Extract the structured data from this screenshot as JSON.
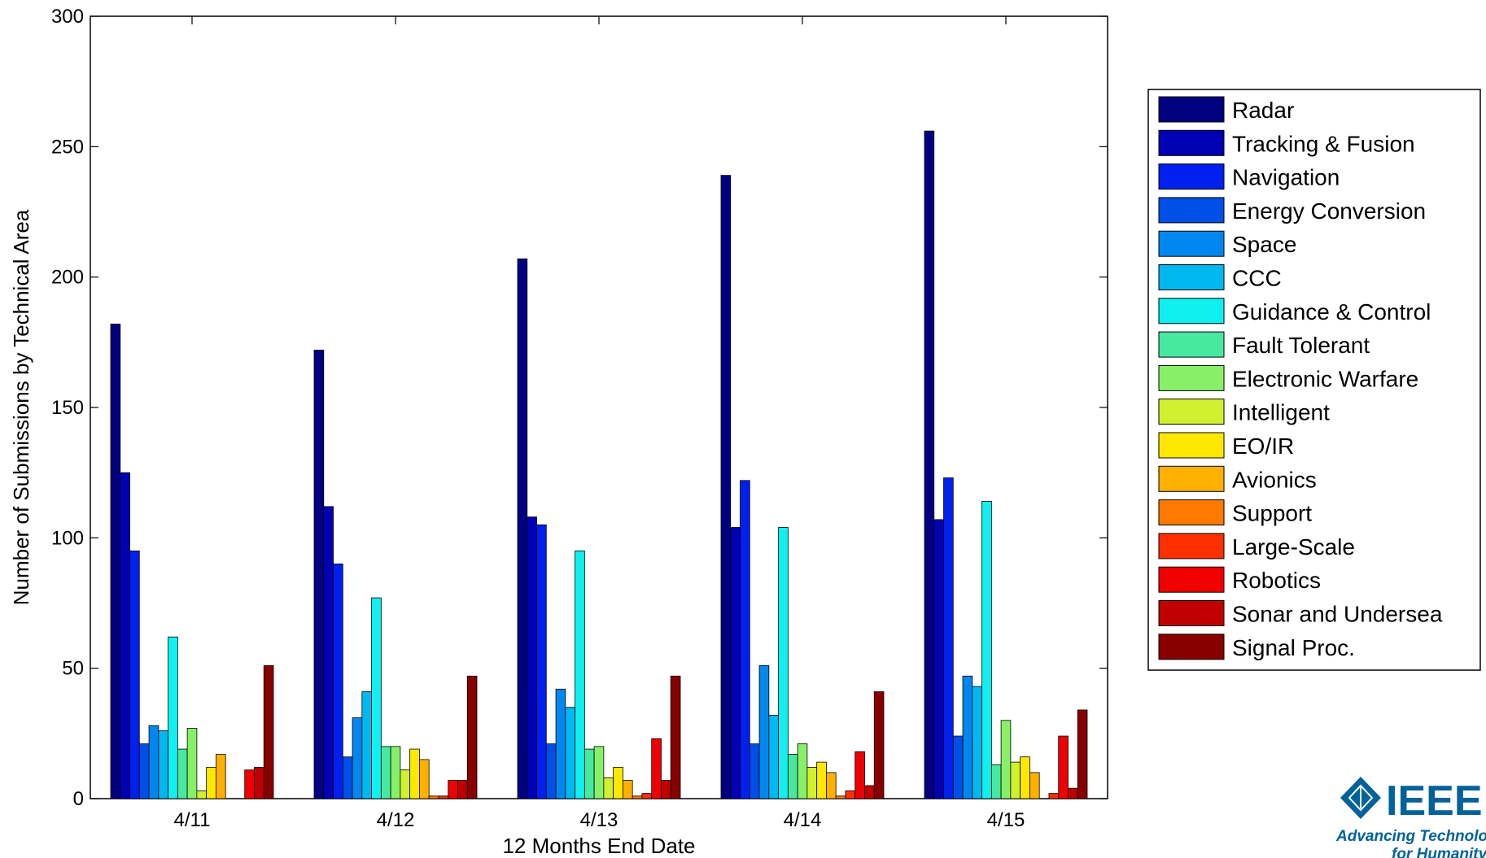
{
  "chart_data": {
    "type": "bar",
    "title": "",
    "xlabel": "12 Months End Date",
    "ylabel": "Number of Submissions by Technical Area",
    "ylim": [
      0,
      300
    ],
    "yticks": [
      0,
      50,
      100,
      150,
      200,
      250,
      300
    ],
    "grid": false,
    "legend_position": "right",
    "categories": [
      "4/11",
      "4/12",
      "4/13",
      "4/14",
      "4/15"
    ],
    "series": [
      {
        "name": "Radar",
        "color": "#000080",
        "values": [
          182,
          172,
          207,
          239,
          256
        ]
      },
      {
        "name": "Tracking & Fusion",
        "color": "#0000b4",
        "values": [
          125,
          112,
          108,
          104,
          107
        ]
      },
      {
        "name": "Navigation",
        "color": "#0020f0",
        "values": [
          95,
          90,
          105,
          122,
          123
        ]
      },
      {
        "name": "Energy Conversion",
        "color": "#0050e8",
        "values": [
          21,
          16,
          21,
          21,
          24
        ]
      },
      {
        "name": "Space",
        "color": "#0088f0",
        "values": [
          28,
          31,
          42,
          51,
          47
        ]
      },
      {
        "name": "CCC",
        "color": "#00b8f0",
        "values": [
          26,
          41,
          35,
          32,
          43
        ]
      },
      {
        "name": "Guidance & Control",
        "color": "#10f0f0",
        "values": [
          62,
          77,
          95,
          104,
          114
        ]
      },
      {
        "name": "Fault Tolerant",
        "color": "#48e8a0",
        "values": [
          19,
          20,
          19,
          17,
          13
        ]
      },
      {
        "name": "Electronic Warfare",
        "color": "#88f068",
        "values": [
          27,
          20,
          20,
          21,
          30
        ]
      },
      {
        "name": "Intelligent",
        "color": "#d0f030",
        "values": [
          3,
          11,
          8,
          12,
          14
        ]
      },
      {
        "name": "EO/IR",
        "color": "#ffe800",
        "values": [
          12,
          19,
          12,
          14,
          16
        ]
      },
      {
        "name": "Avionics",
        "color": "#ffb000",
        "values": [
          17,
          15,
          7,
          10,
          10
        ]
      },
      {
        "name": "Support",
        "color": "#ff7800",
        "values": [
          0,
          1,
          1,
          1,
          0
        ]
      },
      {
        "name": "Large-Scale",
        "color": "#ff3000",
        "values": [
          0,
          1,
          2,
          3,
          2
        ]
      },
      {
        "name": "Robotics",
        "color": "#f00000",
        "values": [
          11,
          7,
          23,
          18,
          24
        ]
      },
      {
        "name": "Sonar and Undersea",
        "color": "#c00000",
        "values": [
          12,
          7,
          7,
          5,
          4
        ]
      },
      {
        "name": "Signal Proc.",
        "color": "#880000",
        "values": [
          51,
          47,
          47,
          41,
          34
        ]
      }
    ]
  },
  "logo": {
    "name": "IEEE",
    "tagline_line1": "Advancing Technology",
    "tagline_line2": "for Humanity",
    "color": "#00629b"
  }
}
